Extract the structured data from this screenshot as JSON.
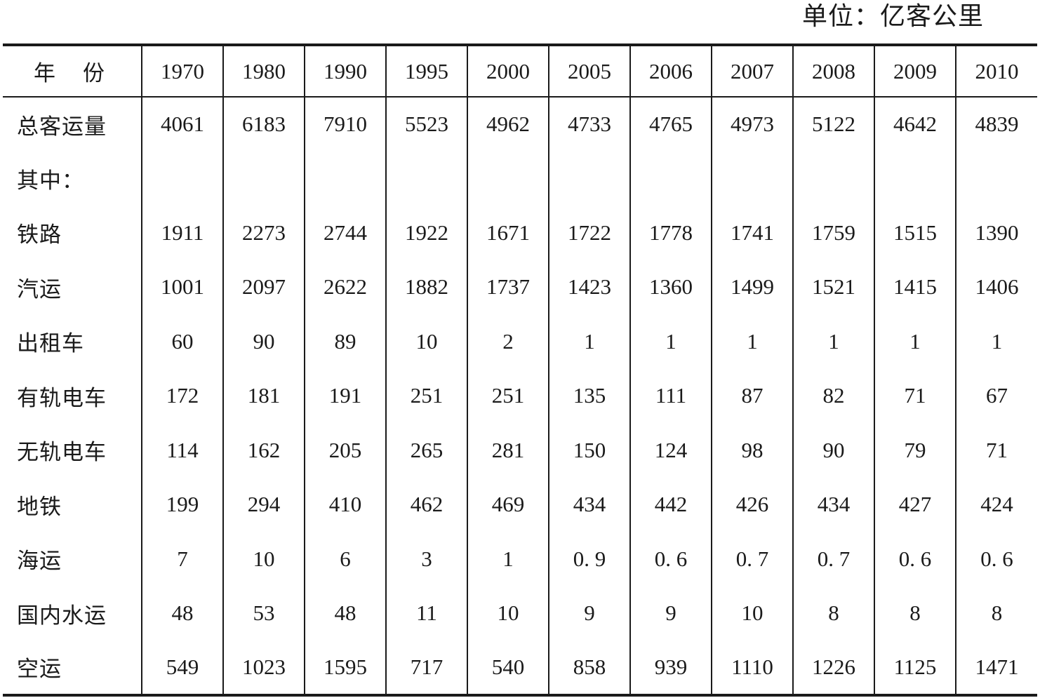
{
  "unit_label": "单位：亿客公里",
  "table": {
    "header_label_left": "年",
    "header_label_right": "份",
    "years": [
      "1970",
      "1980",
      "1990",
      "1995",
      "2000",
      "2005",
      "2006",
      "2007",
      "2008",
      "2009",
      "2010"
    ],
    "rows": [
      {
        "label": "总客运量",
        "values": [
          "4061",
          "6183",
          "7910",
          "5523",
          "4962",
          "4733",
          "4765",
          "4973",
          "5122",
          "4642",
          "4839"
        ]
      },
      {
        "label": "其中：",
        "values": [
          "",
          "",
          "",
          "",
          "",
          "",
          "",
          "",
          "",
          "",
          ""
        ]
      },
      {
        "label": "铁路",
        "values": [
          "1911",
          "2273",
          "2744",
          "1922",
          "1671",
          "1722",
          "1778",
          "1741",
          "1759",
          "1515",
          "1390"
        ]
      },
      {
        "label": "汽运",
        "values": [
          "1001",
          "2097",
          "2622",
          "1882",
          "1737",
          "1423",
          "1360",
          "1499",
          "1521",
          "1415",
          "1406"
        ]
      },
      {
        "label": "出租车",
        "values": [
          "60",
          "90",
          "89",
          "10",
          "2",
          "1",
          "1",
          "1",
          "1",
          "1",
          "1"
        ]
      },
      {
        "label": "有轨电车",
        "values": [
          "172",
          "181",
          "191",
          "251",
          "251",
          "135",
          "111",
          "87",
          "82",
          "71",
          "67"
        ]
      },
      {
        "label": "无轨电车",
        "values": [
          "114",
          "162",
          "205",
          "265",
          "281",
          "150",
          "124",
          "98",
          "90",
          "79",
          "71"
        ]
      },
      {
        "label": "地铁",
        "values": [
          "199",
          "294",
          "410",
          "462",
          "469",
          "434",
          "442",
          "426",
          "434",
          "427",
          "424"
        ]
      },
      {
        "label": "海运",
        "values": [
          "7",
          "10",
          "6",
          "3",
          "1",
          "0. 9",
          "0. 6",
          "0. 7",
          "0. 7",
          "0. 6",
          "0. 6"
        ]
      },
      {
        "label": "国内水运",
        "values": [
          "48",
          "53",
          "48",
          "11",
          "10",
          "9",
          "9",
          "10",
          "8",
          "8",
          "8"
        ]
      },
      {
        "label": "空运",
        "values": [
          "549",
          "1023",
          "1595",
          "717",
          "540",
          "858",
          "939",
          "1110",
          "1226",
          "1125",
          "1471"
        ]
      }
    ]
  }
}
